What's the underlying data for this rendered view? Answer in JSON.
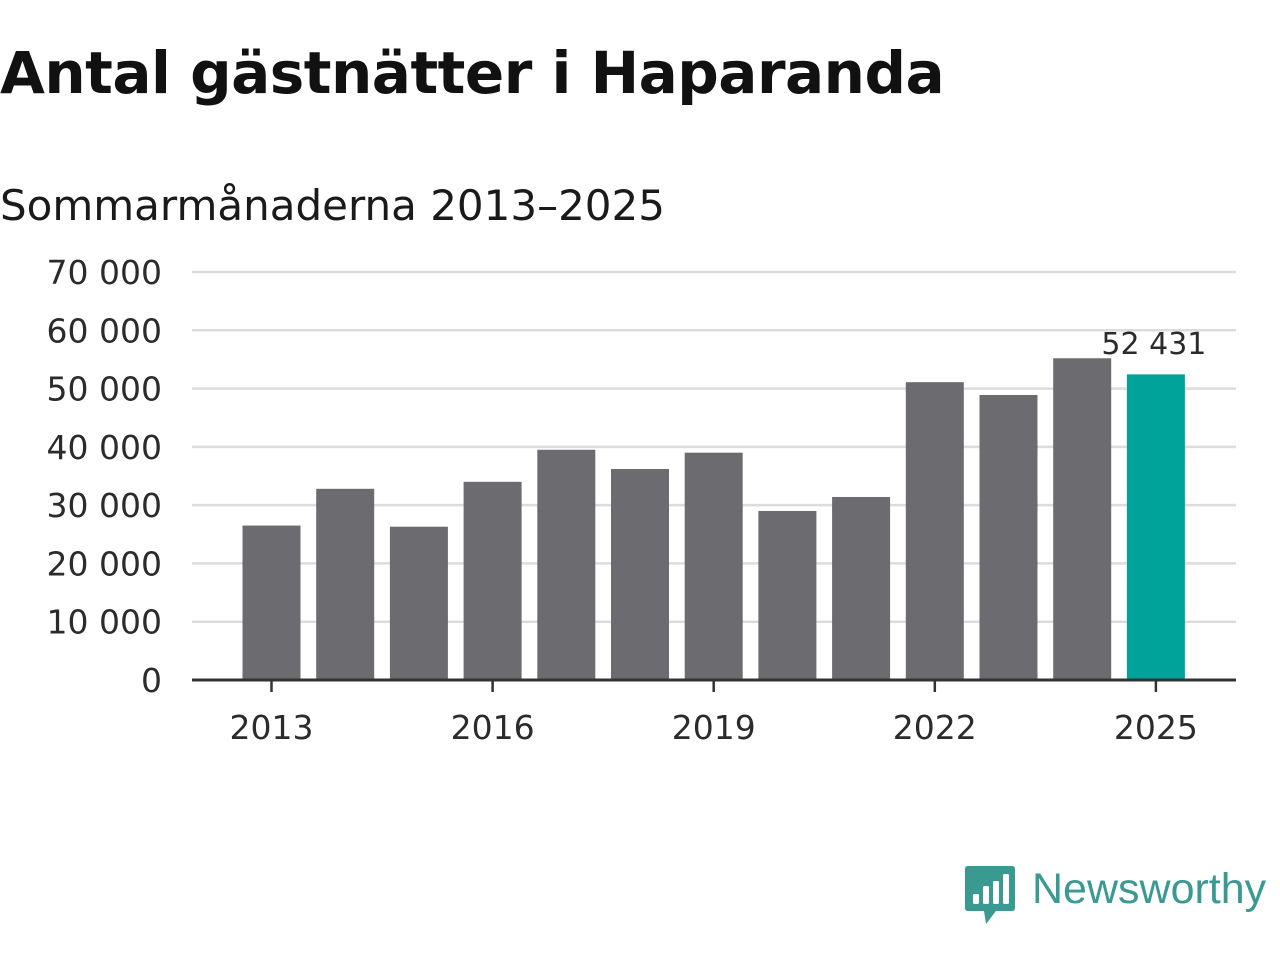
{
  "chart_data": {
    "type": "bar",
    "title": "Antal gästnätter i Haparanda",
    "subtitle": "Sommarmånaderna 2013–2025",
    "categories": [
      "2013",
      "2014",
      "2015",
      "2016",
      "2017",
      "2018",
      "2019",
      "2020",
      "2021",
      "2022",
      "2023",
      "2024",
      "2025"
    ],
    "values": [
      26500,
      32800,
      26300,
      34000,
      39500,
      36200,
      39000,
      29000,
      31400,
      51100,
      48900,
      55200,
      52431
    ],
    "x_tick_labels": [
      "2013",
      "2016",
      "2019",
      "2022",
      "2025"
    ],
    "y_ticks": [
      0,
      10000,
      20000,
      30000,
      40000,
      50000,
      60000,
      70000
    ],
    "y_tick_labels": [
      "0",
      "10 000",
      "20 000",
      "30 000",
      "40 000",
      "50 000",
      "60 000",
      "70 000"
    ],
    "ylim": [
      0,
      70000
    ],
    "xlabel": "",
    "ylabel": "",
    "grid": true,
    "annotation": {
      "category": "2025",
      "label": "52 431"
    },
    "highlight_category": "2025",
    "colors": {
      "bar": "#6c6b70",
      "highlight": "#00a39a",
      "grid": "#dcdcdc",
      "axis": "#333333",
      "text": "#2b2b2b"
    }
  },
  "brand": {
    "name": "Newsworthy",
    "icon": "newsworthy-logo-icon",
    "color": "#3a9a92"
  }
}
